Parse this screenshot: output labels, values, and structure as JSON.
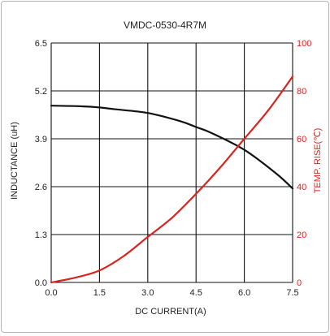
{
  "chart_data": {
    "type": "line",
    "title": "VMDC-0530-4R7M",
    "xlabel": "DC CURRENT(A)",
    "ylabel_left": "INDUCTANCE (uH)",
    "ylabel_right": "TEMP. RISE(℃)",
    "xlim": [
      0,
      7.5
    ],
    "ylim_left": [
      0,
      6.5
    ],
    "ylim_right": [
      0,
      100
    ],
    "x_ticks": [
      "0.0",
      "1.5",
      "3.0",
      "4.5",
      "6.0",
      "7.5"
    ],
    "y_left_ticks": [
      "0.0",
      "1.3",
      "2.6",
      "3.9",
      "5.2",
      "6.5"
    ],
    "y_right_ticks": [
      "0",
      "20",
      "40",
      "60",
      "80",
      "100"
    ],
    "grid": true,
    "series": [
      {
        "axis": "left",
        "color": "#111111",
        "x": [
          0,
          1.0,
          1.5,
          2.0,
          3.0,
          4.0,
          4.5,
          5.0,
          6.0,
          7.0,
          7.5
        ],
        "y": [
          4.8,
          4.78,
          4.75,
          4.7,
          4.6,
          4.38,
          4.22,
          4.05,
          3.6,
          2.95,
          2.55
        ]
      },
      {
        "axis": "right",
        "color": "#d9231f",
        "x": [
          0,
          0.75,
          1.5,
          2.25,
          3.0,
          3.75,
          4.5,
          5.25,
          6.0,
          6.75,
          7.5
        ],
        "y": [
          0,
          2,
          5,
          11,
          19,
          27,
          37,
          48,
          60,
          72,
          86
        ]
      }
    ]
  }
}
